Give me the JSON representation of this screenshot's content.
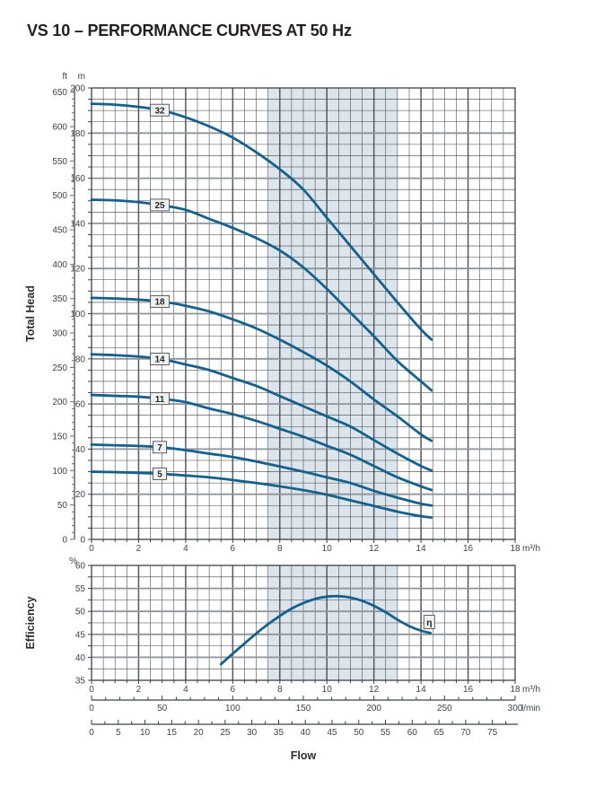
{
  "title": "VS 10 – PERFORMANCE CURVES AT 50 Hz",
  "colors": {
    "curve": "#15618e",
    "band": "#dce5ec",
    "grid_minor": "#3c4147",
    "grid_major_h": "#8f949a",
    "grid_major_v": "#54595f",
    "axis_text": "#3f4347",
    "label_box_fill": "#f1f1ef",
    "label_box_stroke": "#5a5f63",
    "title_text": "#231f20"
  },
  "chart_data": [
    {
      "type": "line",
      "name": "total-head-curves",
      "ylabel": "Total Head",
      "unit_outer_axis": "ft",
      "unit_inner_axis": "m",
      "x_unit": "m³/h",
      "xlim": [
        0,
        18
      ],
      "x_major": 2,
      "x_minor": 0.5,
      "x_ticks": [
        0,
        2,
        4,
        6,
        8,
        10,
        12,
        14,
        16,
        18
      ],
      "ylim_m": [
        0,
        200
      ],
      "y_major": 20,
      "y_minor": 5,
      "m_ticks": [
        0,
        20,
        40,
        60,
        80,
        100,
        120,
        140,
        160,
        180,
        200
      ],
      "ft_ticks": [
        0,
        50,
        100,
        150,
        200,
        250,
        300,
        350,
        400,
        450,
        500,
        550,
        600,
        650
      ],
      "ft_minor_step": 10,
      "duty_band_x": [
        7.5,
        13
      ],
      "series": [
        {
          "label": "32",
          "label_x": 2.9,
          "points": [
            [
              0,
              193
            ],
            [
              1,
              192.6
            ],
            [
              2,
              191.6
            ],
            [
              3,
              190
            ],
            [
              4,
              187
            ],
            [
              5,
              183
            ],
            [
              6,
              178
            ],
            [
              7,
              171.5
            ],
            [
              8,
              164
            ],
            [
              9,
              155
            ],
            [
              10,
              142.5
            ],
            [
              11,
              130
            ],
            [
              12,
              117.5
            ],
            [
              13,
              105
            ],
            [
              14,
              93
            ],
            [
              14.45,
              88.5
            ]
          ]
        },
        {
          "label": "25",
          "label_x": 2.9,
          "points": [
            [
              0,
              150.5
            ],
            [
              1,
              150.2
            ],
            [
              2,
              149.4
            ],
            [
              3,
              148
            ],
            [
              4,
              146
            ],
            [
              5,
              142
            ],
            [
              6,
              138
            ],
            [
              7,
              133.5
            ],
            [
              8,
              128
            ],
            [
              9,
              120.5
            ],
            [
              10,
              111
            ],
            [
              11,
              100.5
            ],
            [
              12,
              90
            ],
            [
              13,
              79
            ],
            [
              14,
              70
            ],
            [
              14.45,
              66
            ]
          ]
        },
        {
          "label": "18",
          "label_x": 2.9,
          "points": [
            [
              0,
              107
            ],
            [
              1,
              106.7
            ],
            [
              2,
              106.2
            ],
            [
              3,
              105.3
            ],
            [
              4,
              103.5
            ],
            [
              5,
              101
            ],
            [
              6,
              97.5
            ],
            [
              7,
              93.5
            ],
            [
              8,
              88.5
            ],
            [
              9,
              83
            ],
            [
              10,
              77
            ],
            [
              11,
              70
            ],
            [
              12,
              62
            ],
            [
              13,
              54.5
            ],
            [
              14,
              46.5
            ],
            [
              14.45,
              43.7
            ]
          ]
        },
        {
          "label": "14",
          "label_x": 2.9,
          "points": [
            [
              0,
              82
            ],
            [
              1,
              81.6
            ],
            [
              2,
              81
            ],
            [
              3,
              79.8
            ],
            [
              4,
              77.5
            ],
            [
              5,
              75
            ],
            [
              6,
              71.5
            ],
            [
              7,
              68
            ],
            [
              8,
              63.5
            ],
            [
              9,
              59
            ],
            [
              10,
              54.5
            ],
            [
              11,
              50
            ],
            [
              12,
              44
            ],
            [
              13,
              38
            ],
            [
              14,
              32.5
            ],
            [
              14.45,
              30.5
            ]
          ]
        },
        {
          "label": "11",
          "label_x": 2.9,
          "points": [
            [
              0,
              64
            ],
            [
              1,
              63.6
            ],
            [
              2,
              63.2
            ],
            [
              3,
              62.3
            ],
            [
              4,
              60.8
            ],
            [
              5,
              58
            ],
            [
              6,
              55.5
            ],
            [
              7,
              52.5
            ],
            [
              8,
              49
            ],
            [
              9,
              45.5
            ],
            [
              10,
              41.5
            ],
            [
              11,
              37.5
            ],
            [
              12,
              32.5
            ],
            [
              13,
              27.5
            ],
            [
              14,
              23.5
            ],
            [
              14.45,
              21.9
            ]
          ]
        },
        {
          "label": "7",
          "label_x": 2.9,
          "points": [
            [
              0,
              42
            ],
            [
              1,
              41.7
            ],
            [
              2,
              41.4
            ],
            [
              3,
              40.8
            ],
            [
              4,
              39.5
            ],
            [
              5,
              38
            ],
            [
              6,
              36.5
            ],
            [
              7,
              34.5
            ],
            [
              8,
              32.3
            ],
            [
              9,
              30
            ],
            [
              10,
              27.5
            ],
            [
              11,
              25
            ],
            [
              12,
              21.5
            ],
            [
              13,
              18.5
            ],
            [
              14,
              15.8
            ],
            [
              14.45,
              15
            ]
          ]
        },
        {
          "label": "5",
          "label_x": 2.9,
          "points": [
            [
              0,
              30
            ],
            [
              1,
              29.8
            ],
            [
              2,
              29.5
            ],
            [
              3,
              29
            ],
            [
              4,
              28.3
            ],
            [
              5,
              27.5
            ],
            [
              6,
              26.3
            ],
            [
              7,
              25
            ],
            [
              8,
              23.5
            ],
            [
              9,
              21.8
            ],
            [
              10,
              19.8
            ],
            [
              11,
              17.3
            ],
            [
              12,
              14.8
            ],
            [
              13,
              12.3
            ],
            [
              14,
              10.3
            ],
            [
              14.45,
              9.7
            ]
          ]
        }
      ]
    },
    {
      "type": "line",
      "name": "efficiency-curve",
      "ylabel": "Efficiency",
      "y_unit": "%",
      "x_unit": "m³/h",
      "xlim": [
        0,
        18
      ],
      "x_major": 2,
      "x_minor": 0.5,
      "x_ticks": [
        0,
        2,
        4,
        6,
        8,
        10,
        12,
        14,
        16,
        18
      ],
      "ylim": [
        35,
        60
      ],
      "y_major": 5,
      "y_minor": 2.5,
      "y_ticks": [
        35,
        40,
        45,
        50,
        55,
        60
      ],
      "duty_band_x": [
        7.5,
        13
      ],
      "series": [
        {
          "label": "η",
          "label_pos": [
            14.35,
            47.7
          ],
          "points": [
            [
              5.5,
              38.5
            ],
            [
              6,
              40.8
            ],
            [
              6.5,
              43
            ],
            [
              7,
              45.2
            ],
            [
              7.5,
              47.2
            ],
            [
              8,
              49
            ],
            [
              8.5,
              50.6
            ],
            [
              9,
              51.8
            ],
            [
              9.5,
              52.7
            ],
            [
              10,
              53.2
            ],
            [
              10.5,
              53.3
            ],
            [
              11,
              53
            ],
            [
              11.5,
              52.3
            ],
            [
              12,
              51.2
            ],
            [
              12.5,
              49.8
            ],
            [
              13,
              48.2
            ],
            [
              13.5,
              46.8
            ],
            [
              14,
              45.8
            ],
            [
              14.4,
              45.3
            ]
          ]
        }
      ]
    }
  ],
  "flow_scales": {
    "lmin": {
      "unit": "l/min",
      "max_value": 300,
      "labels": [
        0,
        50,
        100,
        150,
        200,
        250,
        300
      ],
      "minor_step": 10
    },
    "usgpm": {
      "unit": "",
      "max_value": 79.25,
      "labels": [
        0,
        5,
        10,
        15,
        20,
        25,
        30,
        35,
        40,
        45,
        50,
        55,
        60,
        65,
        70,
        75
      ],
      "minor_step": 2.5
    },
    "axis_title": "Flow"
  }
}
